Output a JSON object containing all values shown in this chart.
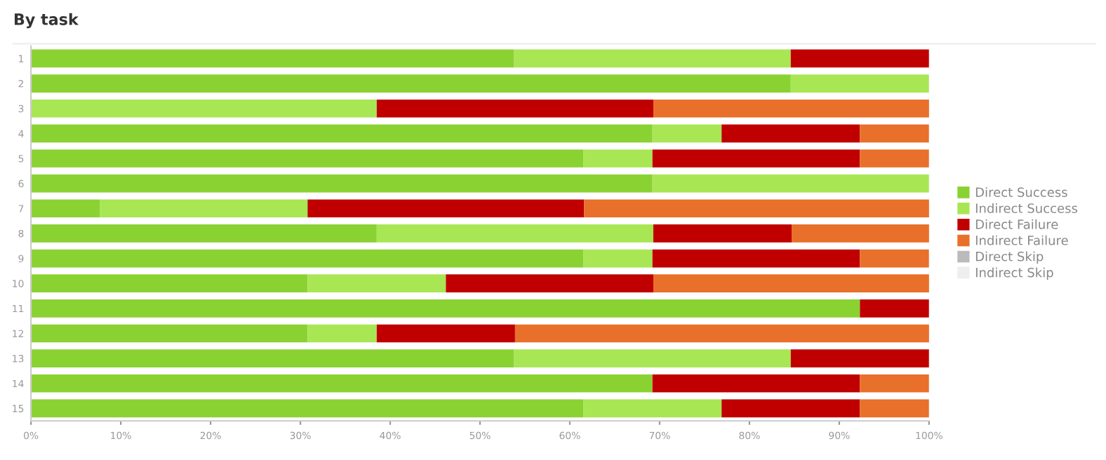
{
  "chart_data": {
    "type": "bar",
    "title": "By task",
    "orientation": "horizontal",
    "stacked": true,
    "legend": "right",
    "grid": false,
    "categories": [
      "1",
      "2",
      "3",
      "4",
      "5",
      "6",
      "7",
      "8",
      "9",
      "10",
      "11",
      "12",
      "13",
      "14",
      "15"
    ],
    "series": [
      {
        "name": "Direct Success",
        "color": "#8ad232",
        "values": [
          53.8,
          84.6,
          0,
          69.2,
          61.5,
          69.2,
          7.7,
          38.5,
          61.5,
          30.8,
          92.3,
          30.8,
          53.8,
          69.2,
          61.5
        ]
      },
      {
        "name": "Indirect Success",
        "color": "#a8e653",
        "values": [
          30.8,
          15.4,
          38.5,
          7.7,
          7.7,
          30.8,
          23.1,
          30.8,
          7.7,
          15.4,
          0,
          7.7,
          30.8,
          0,
          15.4
        ]
      },
      {
        "name": "Direct Failure",
        "color": "#c00000",
        "values": [
          15.4,
          0,
          30.8,
          15.4,
          23.1,
          0,
          30.8,
          15.4,
          23.1,
          23.1,
          7.7,
          15.4,
          15.4,
          23.1,
          15.4
        ]
      },
      {
        "name": "Indirect Failure",
        "color": "#e8702a",
        "values": [
          0,
          0,
          30.8,
          7.7,
          7.7,
          0,
          38.5,
          15.4,
          7.7,
          30.8,
          0,
          46.2,
          0,
          7.7,
          7.7
        ]
      },
      {
        "name": "Direct Skip",
        "color": "#bbbbbb",
        "values": [
          0,
          0,
          0,
          0,
          0,
          0,
          0,
          0,
          0,
          0,
          0,
          0,
          0,
          0,
          0
        ]
      },
      {
        "name": "Indirect Skip",
        "color": "#eeeeee",
        "values": [
          0,
          0,
          0,
          0,
          0,
          0,
          0,
          0,
          0,
          0,
          0,
          0,
          0,
          0,
          0
        ]
      }
    ],
    "xlim": [
      0,
      100
    ],
    "xticks": [
      {
        "value": 0,
        "label": "0%"
      },
      {
        "value": 10,
        "label": "10%"
      },
      {
        "value": 20,
        "label": "20%"
      },
      {
        "value": 30,
        "label": "30%"
      },
      {
        "value": 40,
        "label": "40%"
      },
      {
        "value": 50,
        "label": "50%"
      },
      {
        "value": 60,
        "label": "60%"
      },
      {
        "value": 70,
        "label": "70%"
      },
      {
        "value": 80,
        "label": "80%"
      },
      {
        "value": 90,
        "label": "90%"
      },
      {
        "value": 100,
        "label": "100%"
      }
    ]
  }
}
